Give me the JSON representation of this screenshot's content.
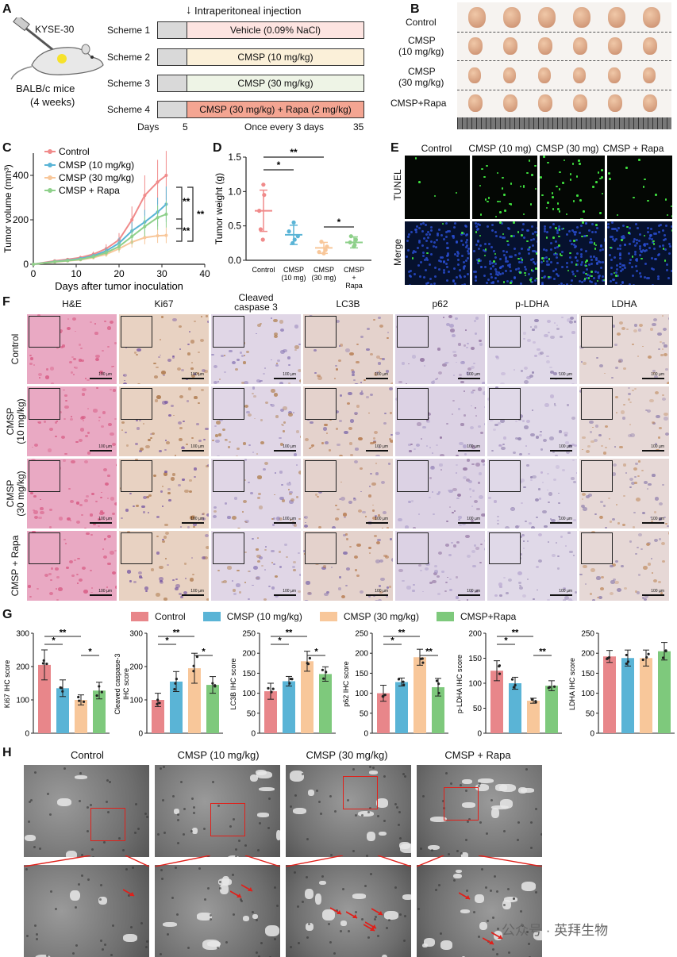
{
  "panels": {
    "A": "A",
    "B": "B",
    "C": "C",
    "D": "D",
    "E": "E",
    "F": "F",
    "G": "G",
    "H": "H"
  },
  "panelA": {
    "cell_line": "KYSE-30",
    "mouse_label_1": "BALB/c mice",
    "mouse_label_2": "(4 weeks)",
    "injection_label": "Intraperitoneal injection",
    "schemes": [
      {
        "name": "Scheme 1",
        "treatment": "Vehicle (0.09% NaCl)",
        "color": "#fde4e1"
      },
      {
        "name": "Scheme 2",
        "treatment": "CMSP (10 mg/kg)",
        "color": "#fbf0d9"
      },
      {
        "name": "Scheme 3",
        "treatment": "CMSP (30 mg/kg)",
        "color": "#eef4e6"
      },
      {
        "name": "Scheme 4",
        "treatment": "CMSP (30 mg/kg) + Rapa (2 mg/kg)",
        "color": "#f4a592"
      }
    ],
    "timeline": {
      "days_label": "Days",
      "start": "5",
      "middle": "Once every 3 days",
      "end": "35"
    }
  },
  "panelB": {
    "rows": [
      "Control",
      "CMSP\n(10 mg/kg)",
      "CMSP\n(30 mg/kg)",
      "CMSP+Rapa"
    ],
    "row_labels": [
      "Control",
      "CMSP",
      "(10 mg/kg)",
      "CMSP",
      "(30 mg/kg)",
      "CMSP+Rapa"
    ]
  },
  "panelC": {
    "ylabel": "Tumor volume (mm³)",
    "xlabel": "Days after tumor inoculation",
    "legend": [
      "Control",
      "CMSP (10 mg/kg)",
      "CMSP (30 mg/kg)",
      "CMSP + Rapa"
    ],
    "sig": [
      "**",
      "**",
      "**"
    ]
  },
  "panelD": {
    "ylabel": "Tumor weight (g)",
    "categories": [
      "Control",
      "CMSP\n(10 mg)",
      "CMSP\n(30 mg)",
      "CMSP\n+\nRapa"
    ],
    "cat_lines": [
      [
        "Control"
      ],
      [
        "CMSP",
        "(10 mg)"
      ],
      [
        "CMSP",
        "(30 mg)"
      ],
      [
        "CMSP",
        "+",
        "Rapa"
      ]
    ],
    "sig": [
      "*",
      "**",
      "*"
    ]
  },
  "panelE": {
    "cols": [
      "Control",
      "CMSP (10 mg)",
      "CMSP (30 mg)",
      "CMSP + Rapa"
    ],
    "rows": [
      "TUNEL",
      "Merge"
    ]
  },
  "panelF": {
    "cols": [
      "H&E",
      "Ki67",
      "Cleaved\ncaspase 3",
      "LC3B",
      "p62",
      "p-LDHA",
      "LDHA"
    ],
    "col_lines": [
      [
        "H&E"
      ],
      [
        "Ki67"
      ],
      [
        "Cleaved",
        "caspase 3"
      ],
      [
        "LC3B"
      ],
      [
        "p62"
      ],
      [
        "p-LDHA"
      ],
      [
        "LDHA"
      ]
    ],
    "rows": [
      "Control",
      "CMSP\n(10 mg/kg)",
      "CMSP\n(30 mg/kg)",
      "CMSP + Rapa"
    ],
    "row_lines": [
      [
        "Control"
      ],
      [
        "CMSP",
        "(10 mg/kg)"
      ],
      [
        "CMSP",
        "(30 mg/kg)"
      ],
      [
        "CMSP + Rapa"
      ]
    ],
    "scale": "100 µm"
  },
  "panelG": {
    "legend": [
      "Control",
      "CMSP (10 mg/kg)",
      "CMSP (30 mg/kg)",
      "CMSP+Rapa"
    ],
    "colors": [
      "#e8868a",
      "#5ab4d6",
      "#f8c79a",
      "#7ec97c"
    ]
  },
  "panelH": {
    "cols": [
      "Control",
      "CMSP (10 mg/kg)",
      "CMSP (30 mg/kg)",
      "CMSP + Rapa"
    ]
  },
  "watermark": "公众号 · 英拜生物",
  "chart_data": [
    {
      "type": "line",
      "panel": "C",
      "xlabel": "Days after tumor inoculation",
      "ylabel": "Tumor volume (mm³)",
      "xlim": [
        0,
        40
      ],
      "ylim": [
        0,
        500
      ],
      "xticks": [
        0,
        10,
        20,
        30,
        40
      ],
      "yticks": [
        0,
        200,
        400
      ],
      "x": [
        0,
        5,
        8,
        11,
        14,
        17,
        20,
        23,
        26,
        29,
        31
      ],
      "series": [
        {
          "name": "Control",
          "color": "#f08a8a",
          "values": [
            0,
            15,
            22,
            30,
            45,
            70,
            110,
            200,
            310,
            370,
            400
          ],
          "err": [
            0,
            5,
            6,
            8,
            12,
            20,
            30,
            60,
            90,
            100,
            110
          ]
        },
        {
          "name": "CMSP (10 mg/kg)",
          "color": "#5ab4d6",
          "values": [
            0,
            12,
            18,
            25,
            38,
            60,
            95,
            150,
            190,
            235,
            270
          ],
          "err": [
            0,
            4,
            5,
            7,
            10,
            15,
            25,
            40,
            55,
            65,
            80
          ]
        },
        {
          "name": "CMSP (30 mg/kg)",
          "color": "#f8c79a",
          "values": [
            0,
            10,
            15,
            20,
            30,
            45,
            70,
            100,
            120,
            128,
            130
          ],
          "err": [
            0,
            3,
            4,
            6,
            8,
            12,
            18,
            25,
            30,
            32,
            35
          ]
        },
        {
          "name": "CMSP + Rapa",
          "color": "#8ed08a",
          "values": [
            0,
            11,
            16,
            22,
            34,
            52,
            80,
            125,
            170,
            210,
            225
          ],
          "err": [
            0,
            4,
            5,
            6,
            9,
            14,
            20,
            35,
            45,
            55,
            60
          ]
        }
      ]
    },
    {
      "type": "scatter",
      "panel": "D",
      "ylabel": "Tumor weight (g)",
      "ylim": [
        0,
        1.5
      ],
      "yticks": [
        0.0,
        0.5,
        1.0,
        1.5
      ],
      "categories": [
        "Control",
        "CMSP (10 mg)",
        "CMSP (30 mg)",
        "CMSP + Rapa"
      ],
      "means": [
        0.72,
        0.37,
        0.18,
        0.26
      ],
      "sd": [
        0.3,
        0.14,
        0.08,
        0.08
      ],
      "colors": [
        "#f08a8a",
        "#5ab4d6",
        "#f8c79a",
        "#8ed08a"
      ],
      "points": [
        [
          1.1,
          0.95,
          0.72,
          0.45,
          0.3
        ],
        [
          0.55,
          0.42,
          0.35,
          0.3,
          0.25
        ],
        [
          0.27,
          0.2,
          0.15,
          0.12,
          0.1
        ],
        [
          0.35,
          0.3,
          0.26,
          0.22,
          0.2
        ]
      ]
    },
    {
      "type": "bar",
      "panel": "G1",
      "ylabel": "Ki67 IHC score",
      "ylim": [
        0,
        300
      ],
      "yticks": [
        0,
        100,
        200,
        300
      ],
      "categories": [
        "Control",
        "CMSP (10 mg/kg)",
        "CMSP (30 mg/kg)",
        "CMSP+Rapa"
      ],
      "values": [
        205,
        135,
        100,
        128
      ],
      "err": [
        45,
        25,
        15,
        25
      ]
    },
    {
      "type": "bar",
      "panel": "G2",
      "ylabel": "Cleaved caspase-3 IHC score",
      "ylim": [
        0,
        300
      ],
      "yticks": [
        0,
        100,
        200,
        300
      ],
      "categories": [
        "Control",
        "CMSP (10 mg/kg)",
        "CMSP (30 mg/kg)",
        "CMSP+Rapa"
      ],
      "values": [
        100,
        155,
        195,
        145
      ],
      "err": [
        20,
        30,
        45,
        25
      ]
    },
    {
      "type": "bar",
      "panel": "G3",
      "ylabel": "LC3B IHC score",
      "ylim": [
        0,
        250
      ],
      "yticks": [
        0,
        50,
        100,
        150,
        200,
        250
      ],
      "categories": [
        "Control",
        "CMSP (10 mg/kg)",
        "CMSP (30 mg/kg)",
        "CMSP+Rapa"
      ],
      "values": [
        105,
        130,
        180,
        148
      ],
      "err": [
        20,
        12,
        25,
        18
      ]
    },
    {
      "type": "bar",
      "panel": "G4",
      "ylabel": "p62 IHC score",
      "ylim": [
        0,
        250
      ],
      "yticks": [
        0,
        50,
        100,
        150,
        200,
        250
      ],
      "categories": [
        "Control",
        "CMSP (10 mg/kg)",
        "CMSP (30 mg/kg)",
        "CMSP+Rapa"
      ],
      "values": [
        100,
        128,
        190,
        115
      ],
      "err": [
        20,
        10,
        20,
        22
      ]
    },
    {
      "type": "bar",
      "panel": "G5",
      "ylabel": "p-LDHA IHC score",
      "ylim": [
        0,
        200
      ],
      "yticks": [
        0,
        50,
        100,
        150,
        200
      ],
      "categories": [
        "Control",
        "CMSP (10 mg/kg)",
        "CMSP (30 mg/kg)",
        "CMSP+Rapa"
      ],
      "values": [
        125,
        100,
        65,
        95
      ],
      "err": [
        20,
        12,
        5,
        10
      ]
    },
    {
      "type": "bar",
      "panel": "G6",
      "ylabel": "LDHA IHC score",
      "ylim": [
        0,
        250
      ],
      "yticks": [
        0,
        50,
        100,
        150,
        200,
        250
      ],
      "categories": [
        "Control",
        "CMSP (10 mg/kg)",
        "CMSP (30 mg/kg)",
        "CMSP+Rapa"
      ],
      "values": [
        192,
        188,
        188,
        205
      ],
      "err": [
        15,
        20,
        20,
        22
      ]
    }
  ],
  "g_sig": [
    [
      [
        "*",
        0,
        1
      ],
      [
        "**",
        0,
        2
      ],
      [
        "*",
        2,
        3
      ]
    ],
    [
      [
        "*",
        0,
        1
      ],
      [
        "**",
        0,
        2
      ],
      [
        "*",
        2,
        3
      ]
    ],
    [
      [
        "*",
        0,
        1
      ],
      [
        "**",
        0,
        2
      ],
      [
        "*",
        2,
        3
      ]
    ],
    [
      [
        "*",
        0,
        1
      ],
      [
        "**",
        0,
        2
      ],
      [
        "**",
        2,
        3
      ]
    ],
    [
      [
        "*",
        0,
        1
      ],
      [
        "**",
        0,
        2
      ],
      [
        "**",
        2,
        3
      ]
    ],
    []
  ]
}
